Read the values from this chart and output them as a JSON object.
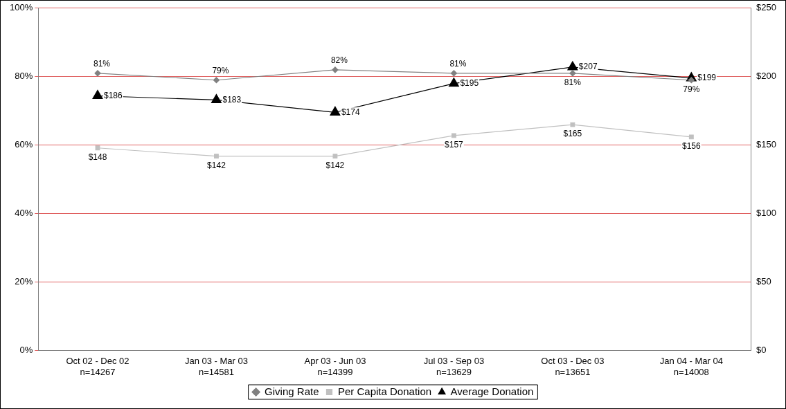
{
  "chart_data": {
    "type": "line",
    "categories": [
      "Oct 02 - Dec 02\nn=14267",
      "Jan 03 - Mar 03\nn=14581",
      "Apr 03 - Jun 03\nn=14399",
      "Jul 03 - Sep 03\nn=13629",
      "Oct 03 - Dec 03\nn=13651",
      "Jan 04 - Mar 04\nn=14008"
    ],
    "series": [
      {
        "name": "Giving Rate",
        "color": "#808080",
        "marker": "diamond",
        "values": [
          81,
          79,
          82,
          81,
          81,
          79
        ],
        "value_labels": [
          "81%",
          "79%",
          "82%",
          "81%",
          "81%",
          "79%"
        ]
      },
      {
        "name": "Per Capita Donation",
        "color": "#c0c0c0",
        "marker": "square",
        "axis": "y2",
        "values": [
          148,
          142,
          142,
          157,
          165,
          156
        ],
        "value_labels": [
          "$148",
          "$142",
          "$142",
          "$157",
          "$165",
          "$156"
        ]
      },
      {
        "name": "Average Donation",
        "color": "#000000",
        "marker": "triangle",
        "axis": "y2",
        "values": [
          186,
          183,
          174,
          195,
          207,
          199
        ],
        "value_labels": [
          "$186",
          "$183",
          "$174",
          "$195",
          "$207",
          "$199"
        ]
      }
    ],
    "ylim": [
      0,
      100
    ],
    "yticks": [
      {
        "value": 0,
        "label": "0%"
      },
      {
        "value": 20,
        "label": "20%"
      },
      {
        "value": 40,
        "label": "40%"
      },
      {
        "value": 60,
        "label": "60%"
      },
      {
        "value": 80,
        "label": "80%"
      },
      {
        "value": 100,
        "label": "100%"
      }
    ],
    "y2lim": [
      0,
      250
    ],
    "y2ticks": [
      {
        "value": 0,
        "label": "$0"
      },
      {
        "value": 50,
        "label": "$50"
      },
      {
        "value": 100,
        "label": "$100"
      },
      {
        "value": 150,
        "label": "$150"
      },
      {
        "value": 200,
        "label": "$200"
      },
      {
        "value": 250,
        "label": "$250"
      }
    ],
    "grid": "y",
    "legend": "bottom",
    "line_style": "solid"
  }
}
